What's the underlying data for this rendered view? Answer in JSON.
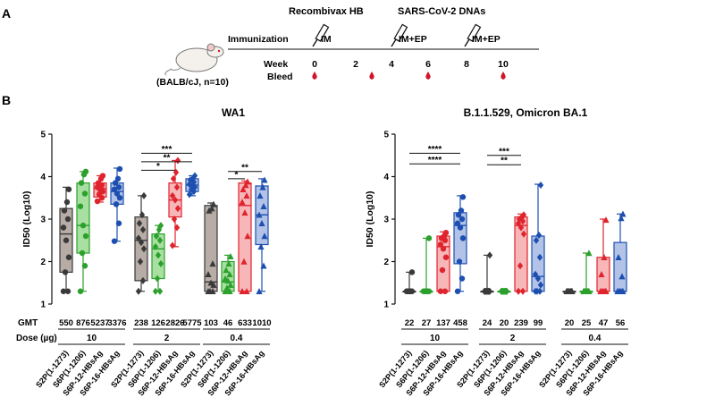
{
  "panel_a": {
    "label": "A",
    "mouse_caption": "(BALB/cJ, n=10)",
    "immunization_label": "Immunization",
    "week_label": "Week",
    "bleed_label": "Bleed",
    "vaccine_1": "Recombivax HB",
    "vaccine_2": "SARS-CoV-2 DNAs",
    "route_1": "IM",
    "route_2": "IM+EP",
    "route_3": "IM+EP",
    "weeks": [
      "0",
      "2",
      "4",
      "6",
      "8",
      "10"
    ],
    "colors": {
      "bleed": "#d1142a",
      "axis": "#111111"
    }
  },
  "panel_b_label": "B",
  "chart_data": [
    {
      "type": "box",
      "title": "WA1",
      "ylabel": "ID50 (Log10)",
      "ylim": [
        1,
        5
      ],
      "yticks": [
        "1",
        "2",
        "3",
        "4",
        "5"
      ],
      "row_gmt_label": "GMT",
      "row_dose_label": "Dose (µg)",
      "series_colors": [
        "#3a3a3a",
        "#2ca02c",
        "#e0242e",
        "#1d4fb0"
      ],
      "series_fills": [
        "#b7aca6",
        "#a8e0a2",
        "#f7b7b9",
        "#b3c3e8"
      ],
      "categories": [
        "S2P(1-1273)",
        "S6P(1-1206)",
        "S6P-12-HBsAg",
        "S6P-16-HBsAg"
      ],
      "groups": [
        {
          "dose": "10",
          "marker": "circle",
          "boxes": [
            {
              "series": 0,
              "min": 1.3,
              "q1": 1.75,
              "median": 2.65,
              "q3": 3.25,
              "max": 3.75,
              "points": [
                1.3,
                1.3,
                1.75,
                2.1,
                2.5,
                2.8,
                3.0,
                3.2,
                3.4,
                3.7
              ]
            },
            {
              "series": 1,
              "min": 1.3,
              "q1": 2.2,
              "median": 2.85,
              "q3": 3.85,
              "max": 4.12,
              "points": [
                1.3,
                1.9,
                2.2,
                2.6,
                2.85,
                3.3,
                3.6,
                3.85,
                4.05,
                4.12
              ]
            },
            {
              "series": 2,
              "min": 3.4,
              "q1": 3.52,
              "median": 3.72,
              "q3": 3.85,
              "max": 4.02,
              "points": [
                3.42,
                3.5,
                3.58,
                3.65,
                3.7,
                3.75,
                3.8,
                3.85,
                3.95,
                4.02
              ]
            },
            {
              "series": 3,
              "min": 2.48,
              "q1": 3.35,
              "median": 3.65,
              "q3": 3.85,
              "max": 4.2,
              "points": [
                2.48,
                2.9,
                3.35,
                3.5,
                3.6,
                3.7,
                3.75,
                3.85,
                3.95,
                4.18
              ]
            }
          ],
          "gmt": [
            "550",
            "876",
            "5237",
            "3376"
          ]
        },
        {
          "dose": "2",
          "marker": "diamond",
          "boxes": [
            {
              "series": 0,
              "min": 1.3,
              "q1": 1.55,
              "median": 2.5,
              "q3": 3.05,
              "max": 3.55,
              "points": [
                1.3,
                1.55,
                2.0,
                2.3,
                2.45,
                2.55,
                2.75,
                2.9,
                3.1,
                3.55
              ]
            },
            {
              "series": 1,
              "min": 1.3,
              "q1": 1.6,
              "median": 2.3,
              "q3": 2.65,
              "max": 2.85,
              "points": [
                1.3,
                1.3,
                1.6,
                1.95,
                2.15,
                2.35,
                2.5,
                2.6,
                2.75,
                2.85
              ]
            },
            {
              "series": 2,
              "min": 2.35,
              "q1": 3.05,
              "median": 3.45,
              "q3": 3.85,
              "max": 4.38,
              "points": [
                2.38,
                2.8,
                3.0,
                3.25,
                3.45,
                3.55,
                3.75,
                3.95,
                4.1,
                4.38
              ]
            },
            {
              "series": 3,
              "min": 3.55,
              "q1": 3.65,
              "median": 3.8,
              "q3": 3.95,
              "max": 4.02,
              "points": [
                3.58,
                3.65,
                3.7,
                3.75,
                3.78,
                3.82,
                3.87,
                3.92,
                3.96,
                4.02
              ]
            }
          ],
          "gmt": [
            "238",
            "126",
            "2826",
            "5775"
          ]
        },
        {
          "dose": "0.4",
          "marker": "triangle",
          "boxes": [
            {
              "series": 0,
              "min": 1.3,
              "q1": 1.3,
              "median": 1.52,
              "q3": 3.32,
              "max": 3.38,
              "points": [
                1.3,
                1.3,
                1.3,
                1.45,
                1.5,
                1.7,
                1.95,
                3.2,
                3.25,
                3.35
              ]
            },
            {
              "series": 1,
              "min": 1.3,
              "q1": 1.3,
              "median": 1.52,
              "q3": 2.0,
              "max": 2.15,
              "points": [
                1.3,
                1.3,
                1.38,
                1.45,
                1.55,
                1.6,
                1.7,
                1.8,
                1.95,
                2.12
              ]
            },
            {
              "series": 2,
              "min": 1.3,
              "q1": 1.3,
              "median": 3.32,
              "q3": 3.85,
              "max": 3.9,
              "points": [
                1.3,
                1.3,
                2.0,
                2.6,
                3.15,
                3.4,
                3.55,
                3.7,
                3.8,
                3.88
              ]
            },
            {
              "series": 3,
              "min": 1.3,
              "q1": 2.4,
              "median": 3.1,
              "q3": 3.78,
              "max": 3.95,
              "points": [
                1.3,
                1.9,
                2.35,
                2.6,
                2.9,
                3.1,
                3.3,
                3.55,
                3.75,
                3.92
              ]
            }
          ],
          "gmt": [
            "103",
            "46",
            "633",
            "1010"
          ]
        }
      ],
      "significance": [
        {
          "group": 1,
          "from": 0,
          "to": 3,
          "y": 4.55,
          "label": "***"
        },
        {
          "group": 1,
          "from": 0,
          "to": 3,
          "y": 4.35,
          "label": "**"
        },
        {
          "group": 1,
          "from": 0,
          "to": 2,
          "y": 4.15,
          "label": "*"
        },
        {
          "group": 2,
          "from": 1,
          "to": 3,
          "y": 4.12,
          "label": "**"
        },
        {
          "group": 2,
          "from": 1,
          "to": 2,
          "y": 3.95,
          "label": "*"
        }
      ]
    },
    {
      "type": "box",
      "title": "B.1.1.529, Omicron BA.1",
      "ylabel": "ID50 (Log10)",
      "ylim": [
        1,
        5
      ],
      "yticks": [
        "1",
        "2",
        "3",
        "4",
        "5"
      ],
      "row_gmt_label": "",
      "row_dose_label": "",
      "series_colors": [
        "#3a3a3a",
        "#2ca02c",
        "#e0242e",
        "#1d4fb0"
      ],
      "series_fills": [
        "#b7aca6",
        "#a8e0a2",
        "#f7b7b9",
        "#b3c3e8"
      ],
      "categories": [
        "S2P(1-1273)",
        "S6P(1-1206)",
        "S6P-12-HBsAg",
        "S6P-16-HBsAg"
      ],
      "groups": [
        {
          "dose": "10",
          "marker": "circle",
          "boxes": [
            {
              "series": 0,
              "min": 1.3,
              "q1": 1.3,
              "median": 1.3,
              "q3": 1.3,
              "max": 1.75,
              "points": [
                1.3,
                1.3,
                1.3,
                1.3,
                1.3,
                1.3,
                1.3,
                1.3,
                1.3,
                1.75
              ]
            },
            {
              "series": 1,
              "min": 1.3,
              "q1": 1.3,
              "median": 1.3,
              "q3": 1.3,
              "max": 2.55,
              "points": [
                1.3,
                1.3,
                1.3,
                1.3,
                1.3,
                1.3,
                1.3,
                1.3,
                1.3,
                2.55
              ]
            },
            {
              "series": 2,
              "min": 1.3,
              "q1": 1.3,
              "median": 2.35,
              "q3": 2.6,
              "max": 2.7,
              "points": [
                1.3,
                1.3,
                1.8,
                2.1,
                2.3,
                2.4,
                2.5,
                2.55,
                2.6,
                2.68
              ]
            },
            {
              "series": 3,
              "min": 1.3,
              "q1": 1.95,
              "median": 2.85,
              "q3": 3.15,
              "max": 3.55,
              "points": [
                1.3,
                1.6,
                2.0,
                2.55,
                2.8,
                2.9,
                3.0,
                3.1,
                3.2,
                3.52
              ]
            }
          ],
          "gmt": [
            "22",
            "27",
            "137",
            "458"
          ]
        },
        {
          "dose": "2",
          "marker": "diamond",
          "boxes": [
            {
              "series": 0,
              "min": 1.3,
              "q1": 1.3,
              "median": 1.3,
              "q3": 1.3,
              "max": 2.15,
              "points": [
                1.3,
                1.3,
                1.3,
                1.3,
                1.3,
                1.3,
                1.3,
                1.3,
                1.3,
                2.15
              ]
            },
            {
              "series": 1,
              "min": 1.3,
              "q1": 1.3,
              "median": 1.3,
              "q3": 1.3,
              "max": 1.3,
              "points": [
                1.3,
                1.3,
                1.3,
                1.3,
                1.3,
                1.3,
                1.3,
                1.3,
                1.3,
                1.3
              ]
            },
            {
              "series": 2,
              "min": 1.3,
              "q1": 1.3,
              "median": 2.85,
              "q3": 3.05,
              "max": 3.12,
              "points": [
                1.3,
                1.3,
                1.9,
                2.65,
                2.8,
                2.9,
                2.95,
                3.0,
                3.05,
                3.1
              ]
            },
            {
              "series": 3,
              "min": 1.3,
              "q1": 1.3,
              "median": 1.65,
              "q3": 2.6,
              "max": 3.82,
              "points": [
                1.3,
                1.3,
                1.3,
                1.45,
                1.6,
                1.7,
                2.1,
                2.5,
                2.62,
                3.8
              ]
            }
          ],
          "gmt": [
            "24",
            "20",
            "239",
            "99"
          ]
        },
        {
          "dose": "0.4",
          "marker": "triangle",
          "boxes": [
            {
              "series": 0,
              "min": 1.3,
              "q1": 1.3,
              "median": 1.3,
              "q3": 1.3,
              "max": 1.3,
              "points": [
                1.3,
                1.3,
                1.3,
                1.3,
                1.3,
                1.3,
                1.3,
                1.3,
                1.3,
                1.3
              ]
            },
            {
              "series": 1,
              "min": 1.3,
              "q1": 1.3,
              "median": 1.3,
              "q3": 1.3,
              "max": 2.2,
              "points": [
                1.3,
                1.3,
                1.3,
                1.3,
                1.3,
                1.3,
                1.3,
                1.3,
                1.3,
                2.2
              ]
            },
            {
              "series": 2,
              "min": 1.3,
              "q1": 1.3,
              "median": 1.3,
              "q3": 2.1,
              "max": 3.0,
              "points": [
                1.3,
                1.3,
                1.3,
                1.3,
                1.3,
                1.3,
                1.3,
                1.7,
                2.1,
                2.98
              ]
            },
            {
              "series": 3,
              "min": 1.3,
              "q1": 1.3,
              "median": 1.3,
              "q3": 2.45,
              "max": 3.12,
              "points": [
                1.3,
                1.3,
                1.3,
                1.3,
                1.3,
                1.3,
                1.65,
                2.1,
                3.02,
                3.12
              ]
            }
          ],
          "gmt": [
            "20",
            "25",
            "47",
            "56"
          ]
        }
      ],
      "significance": [
        {
          "group": 0,
          "from": 0,
          "to": 3,
          "y": 4.55,
          "label": "****"
        },
        {
          "group": 0,
          "from": 0,
          "to": 3,
          "y": 4.3,
          "label": "****"
        },
        {
          "group": 1,
          "from": 0,
          "to": 2,
          "y": 4.5,
          "label": "***"
        },
        {
          "group": 1,
          "from": 0,
          "to": 2,
          "y": 4.28,
          "label": "**"
        }
      ]
    }
  ]
}
